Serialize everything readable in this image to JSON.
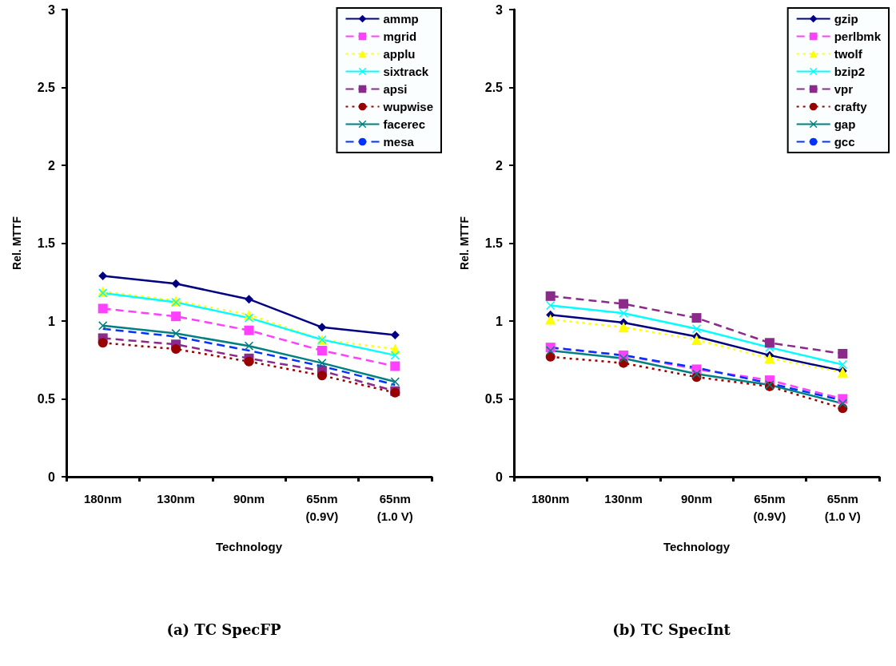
{
  "chart_data": [
    {
      "type": "line",
      "title": "(a) TC SpecFP",
      "xlabel": "Technology",
      "ylabel": "Rel. MTTF",
      "categories": [
        "180nm",
        "130nm",
        "90nm",
        "65nm\n(0.9V)",
        "65nm\n(1.0 V)"
      ],
      "ylim": [
        0,
        3
      ],
      "yticks": [
        0,
        0.5,
        1,
        1.5,
        2,
        2.5,
        3
      ],
      "grid": false,
      "legend": "top right",
      "series": [
        {
          "name": "ammp",
          "color": "#000080",
          "marker": "diamond",
          "line_style": "solid",
          "values": [
            1.29,
            1.24,
            1.14,
            0.96,
            0.91
          ]
        },
        {
          "name": "mgrid",
          "color": "#ff40ff",
          "marker": "square",
          "line_style": "dashed",
          "values": [
            1.08,
            1.03,
            0.94,
            0.81,
            0.71
          ]
        },
        {
          "name": "applu",
          "color": "#ffff00",
          "marker": "triangle",
          "line_style": "dotted",
          "values": [
            1.19,
            1.13,
            1.04,
            0.88,
            0.82
          ]
        },
        {
          "name": "sixtrack",
          "color": "#00ffff",
          "marker": "cross",
          "line_style": "solid",
          "values": [
            1.18,
            1.12,
            1.02,
            0.88,
            0.78
          ]
        },
        {
          "name": "apsi",
          "color": "#8b2a8b",
          "marker": "square",
          "line_style": "dashed",
          "values": [
            0.89,
            0.85,
            0.76,
            0.68,
            0.55
          ]
        },
        {
          "name": "wupwise",
          "color": "#990000",
          "marker": "circle",
          "line_style": "dotted",
          "values": [
            0.86,
            0.82,
            0.74,
            0.65,
            0.54
          ]
        },
        {
          "name": "facerec",
          "color": "#008080",
          "marker": "cross",
          "line_style": "solid",
          "values": [
            0.97,
            0.92,
            0.84,
            0.73,
            0.61
          ]
        },
        {
          "name": "mesa",
          "color": "#0033ff",
          "marker": "none",
          "line_style": "dashed",
          "values": [
            0.95,
            0.9,
            0.81,
            0.71,
            0.59
          ]
        }
      ]
    },
    {
      "type": "line",
      "title": "(b) TC SpecInt",
      "xlabel": "Technology",
      "ylabel": "Rel. MTTF",
      "categories": [
        "180nm",
        "130nm",
        "90nm",
        "65nm\n(0.9V)",
        "65nm\n(1.0 V)"
      ],
      "ylim": [
        0,
        3
      ],
      "yticks": [
        0,
        0.5,
        1,
        1.5,
        2,
        2.5,
        3
      ],
      "grid": false,
      "legend": "top right",
      "series": [
        {
          "name": "gzip",
          "color": "#000080",
          "marker": "diamond",
          "line_style": "solid",
          "values": [
            1.04,
            0.99,
            0.9,
            0.78,
            0.68
          ]
        },
        {
          "name": "perlbmk",
          "color": "#ff40ff",
          "marker": "square",
          "line_style": "dashed",
          "values": [
            0.83,
            0.78,
            0.69,
            0.62,
            0.5
          ]
        },
        {
          "name": "twolf",
          "color": "#ffff00",
          "marker": "triangle",
          "line_style": "dotted",
          "values": [
            1.01,
            0.96,
            0.88,
            0.76,
            0.67
          ]
        },
        {
          "name": "bzip2",
          "color": "#00ffff",
          "marker": "cross",
          "line_style": "solid",
          "values": [
            1.1,
            1.05,
            0.95,
            0.83,
            0.72
          ]
        },
        {
          "name": "vpr",
          "color": "#8b2a8b",
          "marker": "square",
          "line_style": "dashed",
          "values": [
            1.16,
            1.11,
            1.02,
            0.86,
            0.79
          ]
        },
        {
          "name": "crafty",
          "color": "#990000",
          "marker": "circle",
          "line_style": "dotted",
          "values": [
            0.77,
            0.73,
            0.64,
            0.58,
            0.44
          ]
        },
        {
          "name": "gap",
          "color": "#008080",
          "marker": "cross",
          "line_style": "solid",
          "values": [
            0.81,
            0.76,
            0.66,
            0.59,
            0.47
          ]
        },
        {
          "name": "gcc",
          "color": "#0033ff",
          "marker": "none",
          "line_style": "dashed",
          "values": [
            0.83,
            0.78,
            0.7,
            0.6,
            0.49
          ]
        }
      ]
    }
  ]
}
